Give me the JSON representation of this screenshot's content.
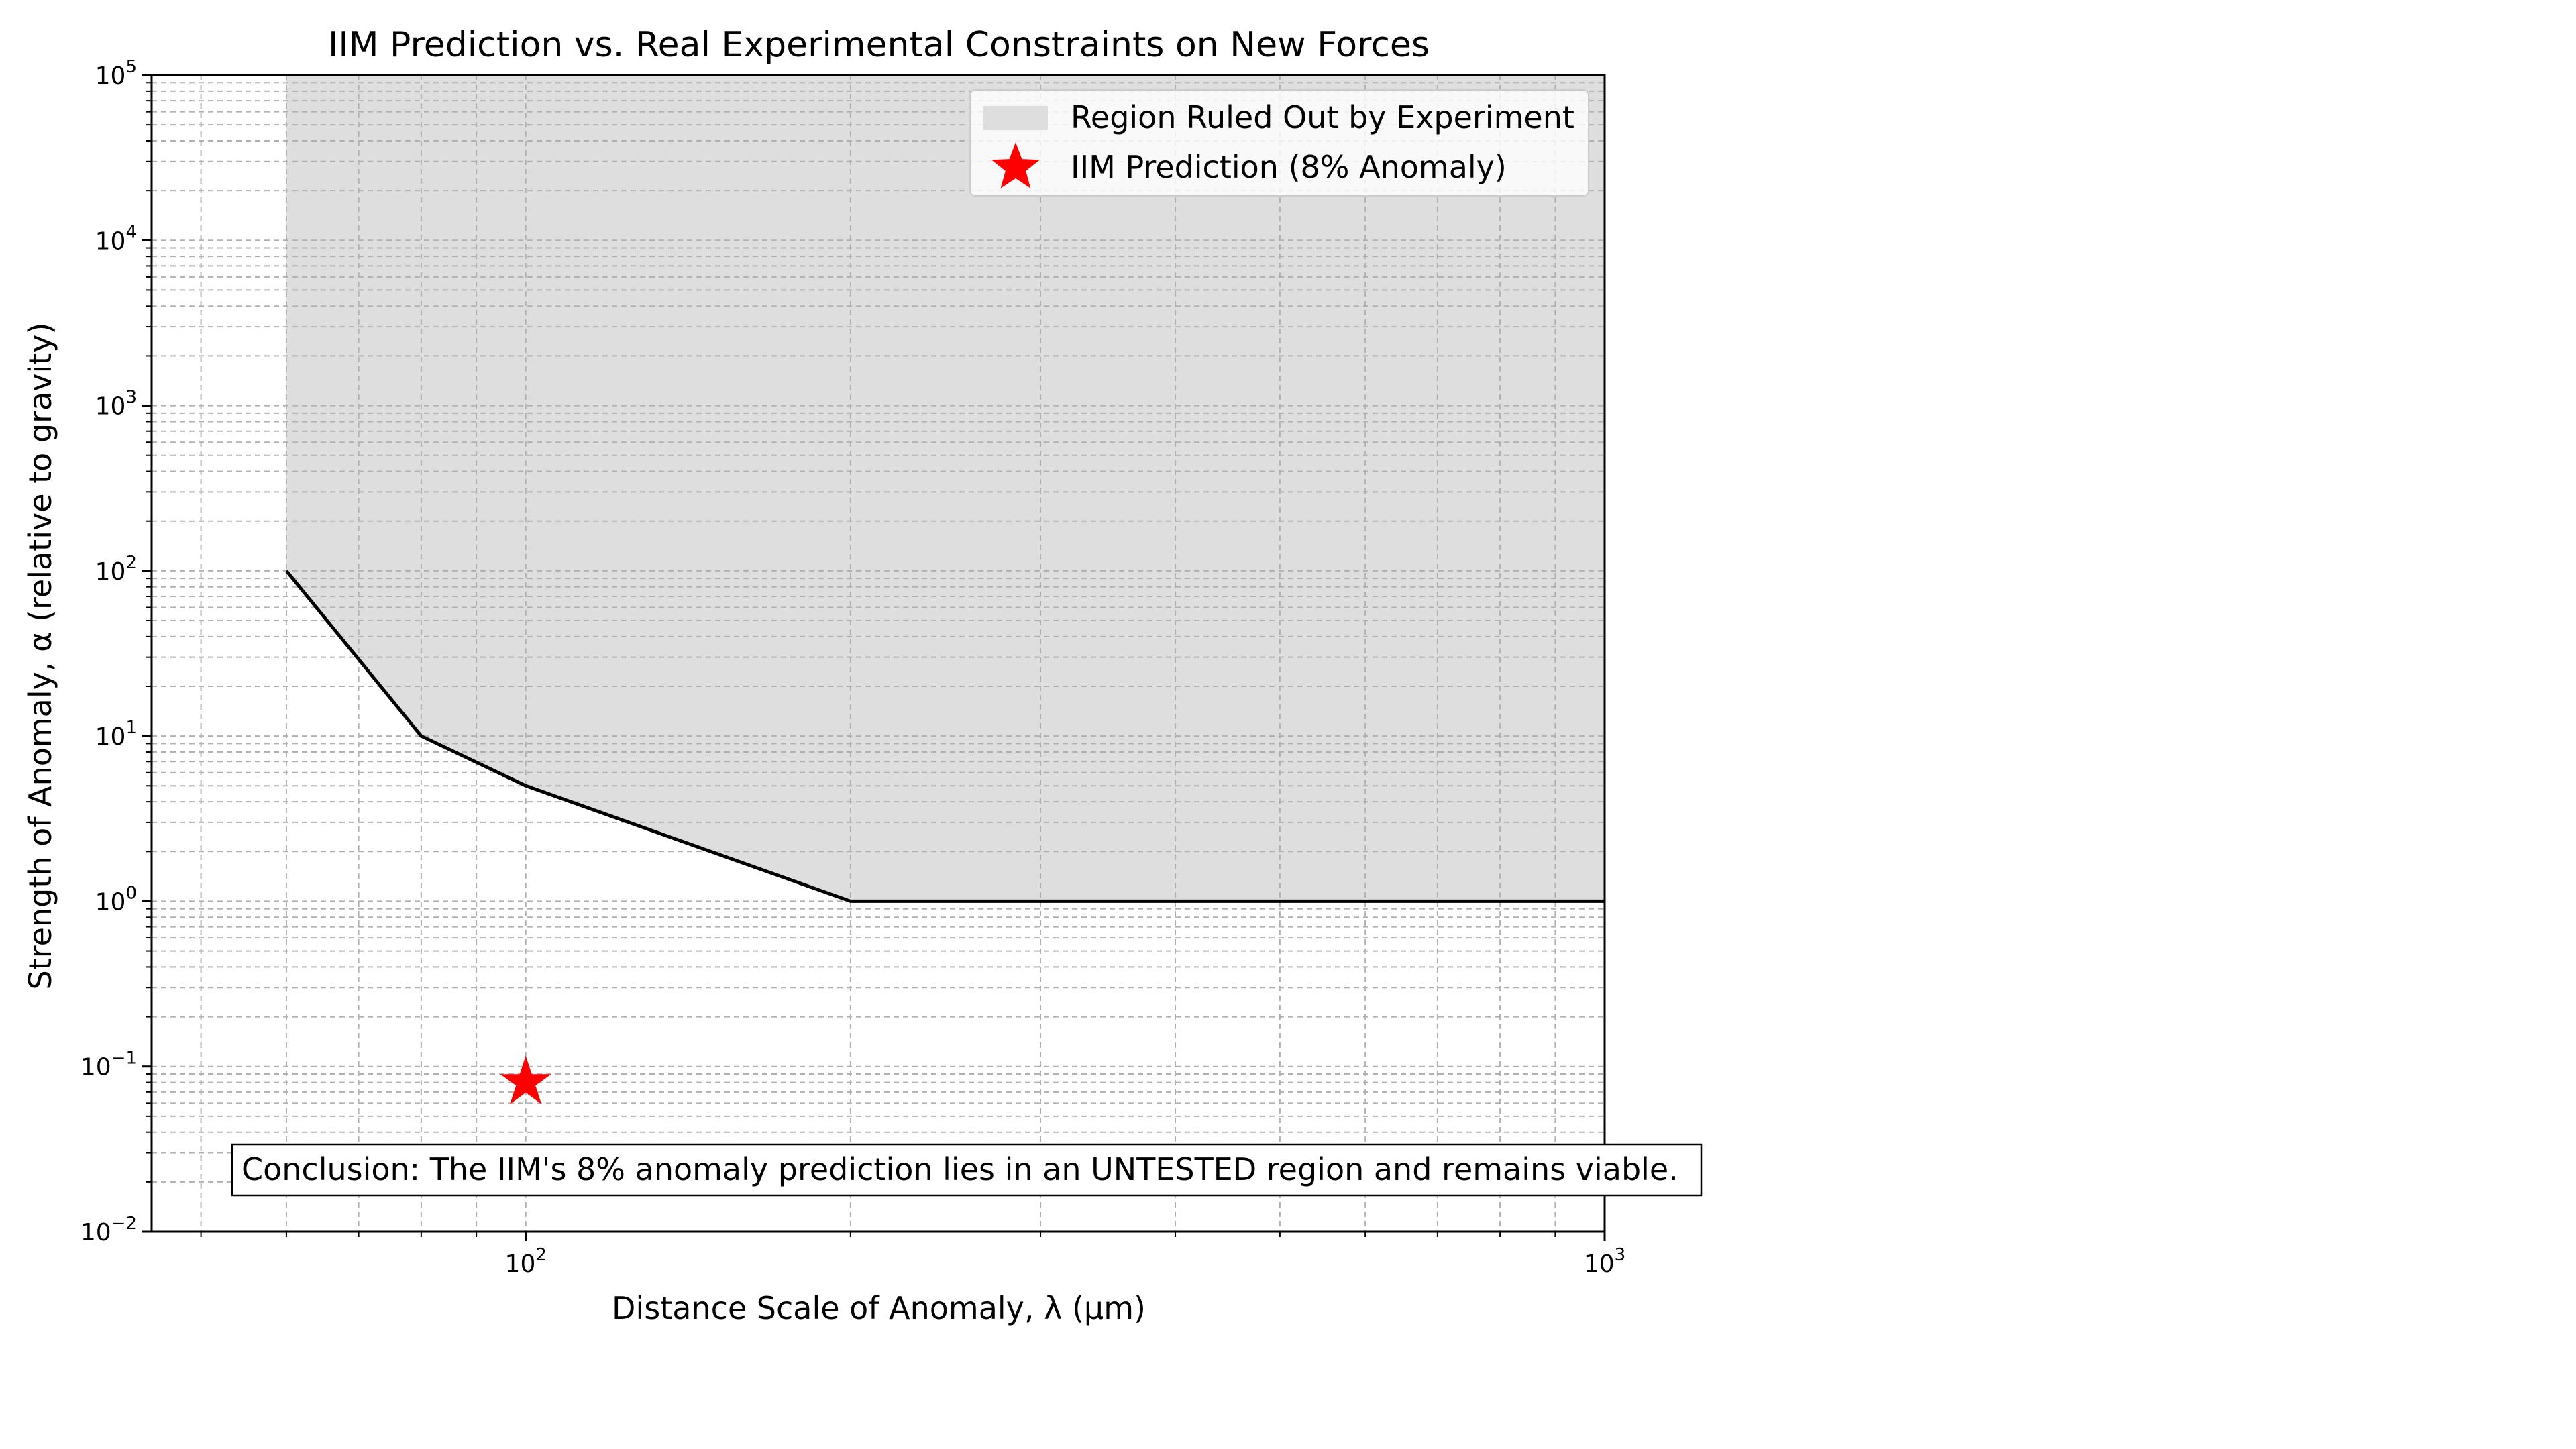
{
  "chart_data": {
    "type": "line",
    "title": "IIM Prediction vs. Real Experimental Constraints on New Forces",
    "xlabel": "Distance Scale of Anomaly, λ (μm)",
    "ylabel": "Strength of Anomaly, α (relative to gravity)",
    "x_scale": "log",
    "y_scale": "log",
    "xlim": [
      45,
      1000
    ],
    "ylim": [
      0.01,
      100000
    ],
    "grid": true,
    "x_ticks": [
      {
        "base": "10",
        "exp": "2",
        "value": 100
      },
      {
        "base": "10",
        "exp": "3",
        "value": 1000
      }
    ],
    "y_ticks": [
      {
        "base": "10",
        "exp": "−2",
        "value": 0.01
      },
      {
        "base": "10",
        "exp": "−1",
        "value": 0.1
      },
      {
        "base": "10",
        "exp": "0",
        "value": 1
      },
      {
        "base": "10",
        "exp": "1",
        "value": 10
      },
      {
        "base": "10",
        "exp": "2",
        "value": 100
      },
      {
        "base": "10",
        "exp": "3",
        "value": 1000
      },
      {
        "base": "10",
        "exp": "4",
        "value": 10000
      },
      {
        "base": "10",
        "exp": "5",
        "value": 100000
      }
    ],
    "series": [
      {
        "name": "Region Ruled Out by Experiment",
        "kind": "fill_above",
        "color": "#dedede",
        "line_color": "#000000",
        "x": [
          60,
          80,
          100,
          200,
          1000
        ],
        "y": [
          100,
          10,
          5,
          1,
          1
        ]
      },
      {
        "name": "IIM Prediction (8% Anomaly)",
        "kind": "scatter",
        "marker": "star",
        "color": "#ff0000",
        "x": [
          100
        ],
        "y": [
          0.08
        ]
      }
    ],
    "legend": {
      "position": "top-right",
      "entries": [
        "Region Ruled Out by Experiment",
        "IIM Prediction (8% Anomaly)"
      ]
    },
    "annotation": {
      "text": "Conclusion: The IIM's 8% anomaly prediction lies in an UNTESTED region and remains viable.",
      "x": 60,
      "y": 0.02
    }
  }
}
